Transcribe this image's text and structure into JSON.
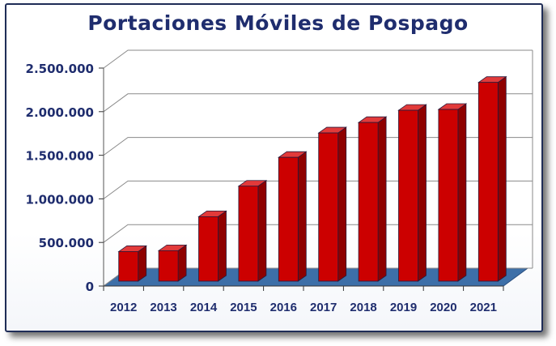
{
  "chart_data": {
    "type": "bar",
    "title": "Portaciones Móviles de Pospago",
    "xlabel": "",
    "ylabel": "",
    "categories": [
      "2012",
      "2013",
      "2014",
      "2015",
      "2016",
      "2017",
      "2018",
      "2019",
      "2020",
      "2021"
    ],
    "values": [
      340000,
      350000,
      740000,
      1090000,
      1420000,
      1700000,
      1820000,
      1960000,
      1970000,
      2280000
    ],
    "yticks": [
      "0",
      "500.000",
      "1.000.000",
      "1.500.000",
      "2.000.000",
      "2.500.000"
    ],
    "ylim": [
      0,
      2500000
    ],
    "grid": true,
    "legend": "none",
    "style": "3d-bar",
    "bar_color": "#cc0000",
    "text_color": "#1f2d6e"
  }
}
